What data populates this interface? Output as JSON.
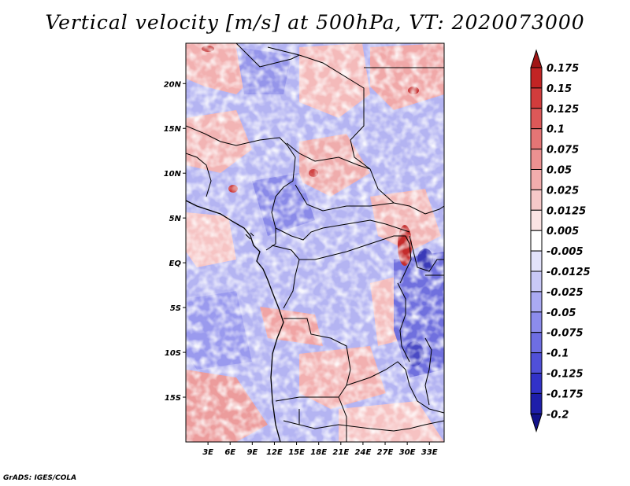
{
  "title": "Vertical velocity [m/s] at 500hPa, VT: 2020073000",
  "credit": "GrADS: IGES/COLA",
  "map": {
    "lat_ticks": [
      "20N",
      "15N",
      "10N",
      "5N",
      "EQ",
      "5S",
      "10S",
      "15S"
    ],
    "lat_values": [
      20,
      15,
      10,
      5,
      0,
      -5,
      -10,
      -15
    ],
    "lon_ticks": [
      "3E",
      "6E",
      "9E",
      "12E",
      "15E",
      "18E",
      "21E",
      "24E",
      "27E",
      "30E",
      "33E"
    ],
    "lon_values": [
      3,
      6,
      9,
      12,
      15,
      18,
      21,
      24,
      27,
      30,
      33
    ],
    "lat_range": [
      -20,
      24.5
    ],
    "lon_range": [
      0,
      35
    ]
  },
  "colorbar": {
    "labels": [
      "0.175",
      "0.15",
      "0.125",
      "0.1",
      "0.075",
      "0.05",
      "0.025",
      "0.0125",
      "0.005",
      "-0.005",
      "-0.0125",
      "-0.025",
      "-0.05",
      "-0.075",
      "-0.1",
      "-0.125",
      "-0.175",
      "-0.2"
    ],
    "colors": [
      "#a11616",
      "#c22424",
      "#d23c3c",
      "#dc5858",
      "#e57575",
      "#ec9191",
      "#f2adad",
      "#f6c9c9",
      "#fae3e3",
      "#ffffff",
      "#e2e2fa",
      "#c8c8f6",
      "#aaaaf2",
      "#8c8cec",
      "#6e6ee3",
      "#5050d8",
      "#3232c8",
      "#1e1eaa",
      "#12128a"
    ],
    "top_color": "#a11616",
    "bottom_color": "#12128a"
  }
}
